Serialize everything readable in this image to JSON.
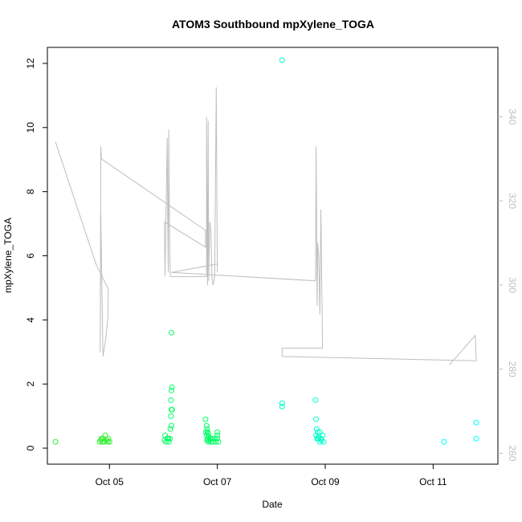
{
  "chart_data": {
    "type": "scatter",
    "title": "ATOM3 Southbound mpXylene_TOGA",
    "xlabel": "Date",
    "ylabel": "mpXylene_TOGA",
    "x_ticks": [
      {
        "value": 5,
        "label": "Oct 05"
      },
      {
        "value": 7,
        "label": "Oct 07"
      },
      {
        "value": 9,
        "label": "Oct 09"
      },
      {
        "value": 11,
        "label": "Oct 11"
      }
    ],
    "xlim": [
      3.85,
      12.2
    ],
    "ylim": [
      -0.5,
      12.5
    ],
    "y_ticks": [
      0,
      2,
      4,
      6,
      8,
      10,
      12
    ],
    "y2lim": [
      257.4,
      356.5
    ],
    "y2_ticks": [
      260,
      280,
      300,
      320,
      340
    ],
    "y2_color": "#bebebe",
    "point_colors": {
      "early": "#33ee33",
      "mid": "#00ff66",
      "late": "#00ffcc",
      "end": "#00ffff"
    },
    "points": [
      [
        4.0,
        0.2,
        "early"
      ],
      [
        4.82,
        0.2,
        "early"
      ],
      [
        4.84,
        0.25,
        "early"
      ],
      [
        4.85,
        0.3,
        "early"
      ],
      [
        4.87,
        0.2,
        "early"
      ],
      [
        4.88,
        0.3,
        "early"
      ],
      [
        4.9,
        0.2,
        "early"
      ],
      [
        4.92,
        0.4,
        "early"
      ],
      [
        4.95,
        0.25,
        "early"
      ],
      [
        4.97,
        0.2,
        "early"
      ],
      [
        4.98,
        0.3,
        "early"
      ],
      [
        5.0,
        0.2,
        "early"
      ],
      [
        6.02,
        0.25,
        "mid"
      ],
      [
        6.03,
        0.4,
        "mid"
      ],
      [
        6.05,
        0.2,
        "mid"
      ],
      [
        6.07,
        0.3,
        "mid"
      ],
      [
        6.09,
        0.3,
        "mid"
      ],
      [
        6.1,
        0.2,
        "mid"
      ],
      [
        6.12,
        0.3,
        "mid"
      ],
      [
        6.13,
        0.6,
        "mid"
      ],
      [
        6.15,
        0.7,
        "mid"
      ],
      [
        6.14,
        1.0,
        "mid"
      ],
      [
        6.16,
        1.2,
        "mid"
      ],
      [
        6.15,
        1.2,
        "mid"
      ],
      [
        6.14,
        1.5,
        "mid"
      ],
      [
        6.15,
        1.8,
        "mid"
      ],
      [
        6.16,
        1.9,
        "mid"
      ],
      [
        6.15,
        3.6,
        "mid"
      ],
      [
        6.78,
        0.9,
        "mid"
      ],
      [
        6.8,
        0.7,
        "mid"
      ],
      [
        6.81,
        0.6,
        "mid"
      ],
      [
        6.79,
        0.5,
        "mid"
      ],
      [
        6.82,
        0.5,
        "mid"
      ],
      [
        6.8,
        0.4,
        "mid"
      ],
      [
        6.83,
        0.45,
        "mid"
      ],
      [
        6.82,
        0.3,
        "mid"
      ],
      [
        6.84,
        0.35,
        "mid"
      ],
      [
        6.81,
        0.25,
        "mid"
      ],
      [
        6.85,
        0.25,
        "mid"
      ],
      [
        6.83,
        0.2,
        "mid"
      ],
      [
        6.87,
        0.3,
        "mid"
      ],
      [
        6.88,
        0.2,
        "mid"
      ],
      [
        6.9,
        0.3,
        "mid"
      ],
      [
        6.92,
        0.2,
        "mid"
      ],
      [
        6.95,
        0.3,
        "mid"
      ],
      [
        6.97,
        0.2,
        "mid"
      ],
      [
        7.0,
        0.4,
        "mid"
      ],
      [
        7.0,
        0.5,
        "mid"
      ],
      [
        7.0,
        0.3,
        "mid"
      ],
      [
        7.02,
        0.2,
        "mid"
      ],
      [
        8.2,
        12.1,
        "late"
      ],
      [
        8.2,
        1.4,
        "late"
      ],
      [
        8.2,
        1.3,
        "late"
      ],
      [
        8.82,
        1.5,
        "late"
      ],
      [
        8.83,
        0.9,
        "late"
      ],
      [
        8.84,
        0.6,
        "late"
      ],
      [
        8.83,
        0.4,
        "late"
      ],
      [
        8.85,
        0.3,
        "late"
      ],
      [
        8.86,
        0.5,
        "late"
      ],
      [
        8.88,
        0.35,
        "late"
      ],
      [
        8.9,
        0.5,
        "late"
      ],
      [
        8.87,
        0.3,
        "late"
      ],
      [
        8.92,
        0.3,
        "late"
      ],
      [
        8.9,
        0.2,
        "late"
      ],
      [
        8.95,
        0.4,
        "late"
      ],
      [
        8.97,
        0.2,
        "late"
      ],
      [
        8.93,
        0.25,
        "late"
      ],
      [
        11.2,
        0.2,
        "end"
      ],
      [
        11.8,
        0.8,
        "end"
      ],
      [
        11.8,
        0.3,
        "end"
      ]
    ],
    "secondary_line": [
      [
        4.0,
        334
      ],
      [
        4.75,
        305
      ],
      [
        4.98,
        299
      ],
      [
        4.97,
        292
      ],
      [
        4.93,
        287
      ],
      [
        4.88,
        283
      ],
      [
        4.84,
        317
      ],
      [
        4.83,
        284
      ],
      [
        4.84,
        333
      ],
      [
        4.85,
        330
      ],
      [
        6.78,
        313
      ],
      [
        6.78,
        309
      ],
      [
        6.02,
        315
      ],
      [
        6.03,
        302
      ],
      [
        6.07,
        335
      ],
      [
        6.08,
        317
      ],
      [
        6.09,
        303
      ],
      [
        6.1,
        337
      ],
      [
        6.11,
        320
      ],
      [
        6.12,
        306
      ],
      [
        6.13,
        302
      ],
      [
        6.8,
        302
      ],
      [
        6.8,
        340
      ],
      [
        6.82,
        300
      ],
      [
        6.83,
        339
      ],
      [
        6.84,
        301
      ],
      [
        6.86,
        315
      ],
      [
        6.88,
        313
      ],
      [
        6.9,
        302
      ],
      [
        6.92,
        300
      ],
      [
        6.95,
        302
      ],
      [
        6.98,
        347
      ],
      [
        7.0,
        303
      ],
      [
        7.0,
        305
      ],
      [
        6.15,
        303
      ],
      [
        8.82,
        301
      ],
      [
        8.83,
        333
      ],
      [
        8.85,
        295
      ],
      [
        8.86,
        310
      ],
      [
        8.88,
        307
      ],
      [
        8.9,
        293
      ],
      [
        8.92,
        318
      ],
      [
        8.95,
        285
      ],
      [
        8.2,
        285
      ],
      [
        8.2,
        283
      ],
      [
        11.8,
        282
      ],
      [
        11.78,
        288
      ],
      [
        11.3,
        281
      ]
    ]
  }
}
